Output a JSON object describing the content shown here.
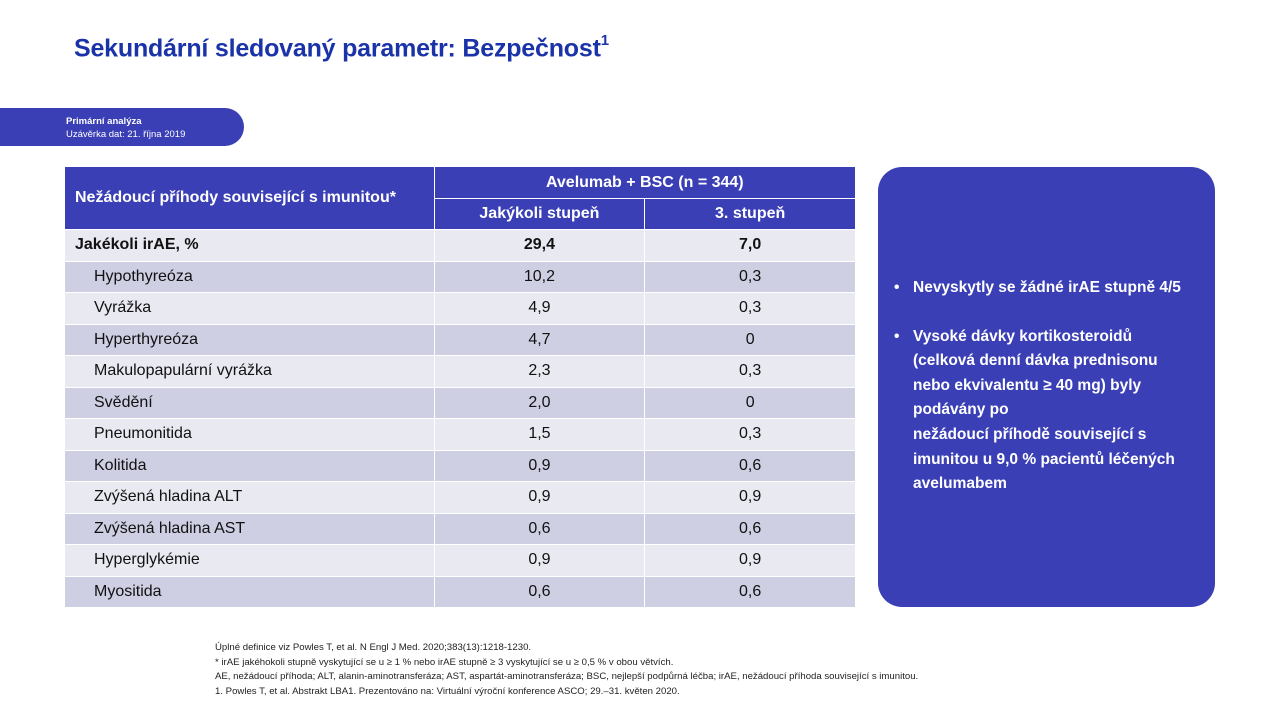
{
  "title": {
    "text": "Sekundární sledovaný parametr:  Bezpečnost",
    "sup": "1"
  },
  "tag": {
    "line1": "Primární analýza",
    "line2": "Uzávěrka dat: 21. října 2019"
  },
  "table": {
    "header_left": "Nežádoucí příhody související s imunitou*",
    "group_header": "Avelumab + BSC (n = 344)",
    "col1": "Jakýkoli stupeň",
    "col2": "3. stupeň",
    "rows": [
      {
        "label": "Jakékoli irAE, %",
        "any": "29,4",
        "g3": "7,0"
      },
      {
        "label": "Hypothyreóza",
        "any": "10,2",
        "g3": "0,3"
      },
      {
        "label": "Vyrážka",
        "any": "4,9",
        "g3": "0,3"
      },
      {
        "label": "Hyperthyreóza",
        "any": "4,7",
        "g3": "0"
      },
      {
        "label": "Makulopapulární vyrážka",
        "any": "2,3",
        "g3": "0,3"
      },
      {
        "label": "Svědění",
        "any": "2,0",
        "g3": "0"
      },
      {
        "label": "Pneumonitida",
        "any": "1,5",
        "g3": "0,3"
      },
      {
        "label": "Kolitida",
        "any": "0,9",
        "g3": "0,6"
      },
      {
        "label": "Zvýšená hladina ALT",
        "any": "0,9",
        "g3": "0,9"
      },
      {
        "label": "Zvýšená hladina AST",
        "any": "0,6",
        "g3": "0,6"
      },
      {
        "label": "Hyperglykémie",
        "any": "0,9",
        "g3": "0,9"
      },
      {
        "label": "Myositida",
        "any": "0,6",
        "g3": "0,6"
      }
    ]
  },
  "callout": {
    "bullet1": "Nevyskytly se žádné irAE stupně 4/5",
    "bullet2_lines": [
      "Vysoké dávky kortikosteroidů",
      "(celková denní dávka prednisonu",
      "nebo ekvivalentu ≥ 40 mg) byly",
      "podávány po",
      "nežádoucí příhodě související s",
      "imunitou u 9,0 % pacientů léčených",
      "avelumabem"
    ]
  },
  "footnotes": [
    "Úplné definice viz Powles T, et al. N Engl J Med. 2020;383(13):1218-1230.",
    "* irAE jakéhokoli stupně vyskytující se u ≥ 1 % nebo irAE stupně ≥ 3 vyskytující se u ≥ 0,5 % v obou větvích.",
    "AE, nežádoucí příhoda; ALT, alanin-aminotransferáza; AST, aspartát-aminotransferáza; BSC, nejlepší podpůrná léčba; irAE, nežádoucí příhoda související s imunitou.",
    "1. Powles T, et al.  Abstrakt LBA1. Prezentováno na: Virtuální výroční konference ASCO; 29.–31. květen 2020."
  ]
}
